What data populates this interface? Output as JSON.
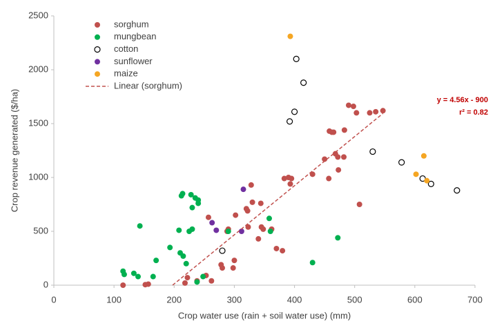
{
  "chart_data": {
    "type": "scatter",
    "x_label": "Crop water use (rain + soil water use) (mm)",
    "y_label": "Crop revenue generated ($/ha)",
    "xlim": [
      0,
      700
    ],
    "xticks": [
      0,
      100,
      200,
      300,
      400,
      500,
      600,
      700
    ],
    "ylim": [
      0,
      2500
    ],
    "yticks": [
      0,
      500,
      1000,
      1500,
      2000,
      2500
    ],
    "grid": false,
    "legend": "top-left",
    "series": [
      {
        "name": "sorghum",
        "color": "#c0504d",
        "x": [
          115,
          152,
          157,
          218,
          222,
          238,
          253,
          262,
          257,
          278,
          280,
          288,
          290,
          298,
          300,
          302,
          320,
          322,
          323,
          328,
          330,
          340,
          344,
          345,
          348,
          362,
          370,
          380,
          383,
          390,
          393,
          395,
          430,
          450,
          457,
          458,
          462,
          465,
          468,
          472,
          473,
          482,
          483,
          490,
          498,
          503,
          508,
          525,
          535,
          547
        ],
        "values": [
          0,
          5,
          10,
          20,
          70,
          40,
          90,
          40,
          630,
          190,
          160,
          500,
          520,
          160,
          230,
          650,
          710,
          690,
          540,
          930,
          770,
          430,
          760,
          540,
          520,
          520,
          340,
          320,
          990,
          1000,
          940,
          990,
          1030,
          1170,
          990,
          1430,
          1420,
          1420,
          1220,
          1190,
          1070,
          1190,
          1440,
          1670,
          1660,
          1600,
          750,
          1600,
          1610,
          1620
        ]
      },
      {
        "name": "mungbean",
        "color": "#00b050",
        "x": [
          115,
          117,
          133,
          140,
          143,
          165,
          170,
          193,
          208,
          210,
          212,
          214,
          215,
          220,
          225,
          228,
          230,
          230,
          235,
          238,
          240,
          240,
          248,
          290,
          358,
          360,
          430,
          472
        ],
        "values": [
          130,
          100,
          110,
          80,
          550,
          80,
          230,
          350,
          510,
          300,
          830,
          850,
          270,
          200,
          500,
          840,
          720,
          520,
          810,
          30,
          760,
          790,
          80,
          500,
          620,
          500,
          210,
          440
        ]
      },
      {
        "name": "cotton",
        "color": "#000000",
        "hollow": true,
        "x": [
          280,
          392,
          400,
          403,
          415,
          530,
          578,
          613,
          627,
          670
        ],
        "values": [
          320,
          1520,
          1610,
          2100,
          1880,
          1240,
          1140,
          990,
          940,
          880
        ]
      },
      {
        "name": "sunflower",
        "color": "#7030a0",
        "x": [
          263,
          270,
          312,
          315
        ],
        "values": [
          580,
          510,
          500,
          890
        ]
      },
      {
        "name": "maize",
        "color": "#f5a623",
        "x": [
          393,
          602,
          615,
          620
        ],
        "values": [
          2310,
          1030,
          1200,
          970
        ]
      }
    ],
    "trendline": {
      "name": "Linear (sorghum)",
      "color": "#c0504d",
      "slope": 4.56,
      "intercept": -900,
      "x_range": [
        197.4,
        547
      ],
      "equation": "y = 4.56x - 900",
      "r2": "r² = 0.82"
    }
  }
}
